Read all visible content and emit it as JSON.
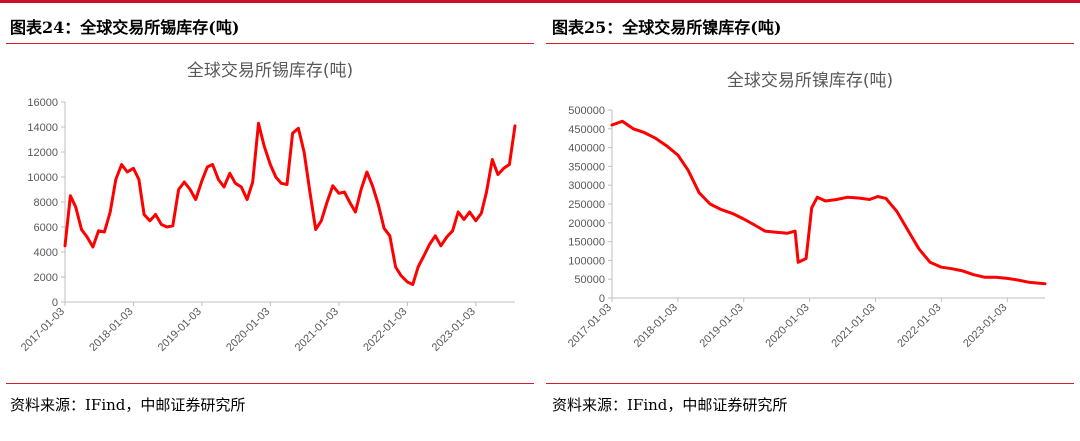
{
  "colors": {
    "accent": "#c8102e",
    "series": "#ff0000"
  },
  "left": {
    "figure_title": "图表24：全球交易所锡库存(吨)",
    "source": "资料来源：IFind，中邮证券研究所"
  },
  "right": {
    "figure_title": "图表25：全球交易所镍库存(吨)",
    "source": "资料来源：IFind，中邮证券研究所"
  },
  "chart_data": [
    {
      "type": "line",
      "title": "全球交易所锡库存(吨)",
      "xlabel": "",
      "ylabel": "",
      "ylim": [
        0,
        16000
      ],
      "yticks": [
        0,
        2000,
        4000,
        6000,
        8000,
        10000,
        12000,
        14000,
        16000
      ],
      "xticks": [
        "2017-01-03",
        "2018-01-03",
        "2019-01-03",
        "2020-01-03",
        "2021-01-03",
        "2022-01-03",
        "2023-01-03"
      ],
      "xlim": [
        "2017-01-03",
        "2023-07-31"
      ],
      "grid": false,
      "series": [
        {
          "name": "",
          "points": [
            [
              "2017-01-03",
              4500
            ],
            [
              "2017-02-01",
              8500
            ],
            [
              "2017-03-01",
              7600
            ],
            [
              "2017-04-01",
              5800
            ],
            [
              "2017-05-01",
              5200
            ],
            [
              "2017-06-01",
              4400
            ],
            [
              "2017-07-01",
              5700
            ],
            [
              "2017-08-01",
              5600
            ],
            [
              "2017-09-01",
              7200
            ],
            [
              "2017-10-01",
              9800
            ],
            [
              "2017-11-01",
              11000
            ],
            [
              "2017-12-01",
              10400
            ],
            [
              "2018-01-03",
              10700
            ],
            [
              "2018-02-01",
              9800
            ],
            [
              "2018-03-01",
              7000
            ],
            [
              "2018-04-01",
              6500
            ],
            [
              "2018-05-01",
              7000
            ],
            [
              "2018-06-01",
              6200
            ],
            [
              "2018-07-01",
              6000
            ],
            [
              "2018-08-01",
              6100
            ],
            [
              "2018-09-01",
              9000
            ],
            [
              "2018-10-01",
              9600
            ],
            [
              "2018-11-01",
              9000
            ],
            [
              "2018-12-01",
              8200
            ],
            [
              "2019-01-03",
              9700
            ],
            [
              "2019-02-01",
              10800
            ],
            [
              "2019-03-01",
              11000
            ],
            [
              "2019-04-01",
              9800
            ],
            [
              "2019-05-01",
              9200
            ],
            [
              "2019-06-01",
              10300
            ],
            [
              "2019-07-01",
              9500
            ],
            [
              "2019-08-01",
              9200
            ],
            [
              "2019-09-01",
              8200
            ],
            [
              "2019-10-01",
              9600
            ],
            [
              "2019-11-01",
              14300
            ],
            [
              "2019-12-01",
              12500
            ],
            [
              "2020-01-03",
              11000
            ],
            [
              "2020-02-01",
              10000
            ],
            [
              "2020-03-01",
              9500
            ],
            [
              "2020-04-01",
              9400
            ],
            [
              "2020-05-01",
              13500
            ],
            [
              "2020-06-01",
              13900
            ],
            [
              "2020-07-01",
              12000
            ],
            [
              "2020-08-01",
              8800
            ],
            [
              "2020-09-01",
              5800
            ],
            [
              "2020-10-01",
              6500
            ],
            [
              "2020-11-01",
              8000
            ],
            [
              "2020-12-01",
              9300
            ],
            [
              "2021-01-03",
              8700
            ],
            [
              "2021-02-01",
              8800
            ],
            [
              "2021-03-01",
              8000
            ],
            [
              "2021-04-01",
              7200
            ],
            [
              "2021-05-01",
              9000
            ],
            [
              "2021-06-01",
              10400
            ],
            [
              "2021-07-01",
              9300
            ],
            [
              "2021-08-01",
              7800
            ],
            [
              "2021-09-01",
              5900
            ],
            [
              "2021-10-01",
              5300
            ],
            [
              "2021-11-01",
              2800
            ],
            [
              "2021-12-01",
              2100
            ],
            [
              "2022-01-03",
              1600
            ],
            [
              "2022-02-01",
              1400
            ],
            [
              "2022-03-01",
              2800
            ],
            [
              "2022-04-01",
              3700
            ],
            [
              "2022-05-01",
              4600
            ],
            [
              "2022-06-01",
              5300
            ],
            [
              "2022-07-01",
              4500
            ],
            [
              "2022-08-01",
              5200
            ],
            [
              "2022-09-01",
              5700
            ],
            [
              "2022-10-01",
              7200
            ],
            [
              "2022-11-01",
              6600
            ],
            [
              "2022-12-01",
              7200
            ],
            [
              "2023-01-03",
              6500
            ],
            [
              "2023-02-01",
              7100
            ],
            [
              "2023-03-01",
              8800
            ],
            [
              "2023-04-01",
              11400
            ],
            [
              "2023-05-01",
              10200
            ],
            [
              "2023-06-01",
              10700
            ],
            [
              "2023-07-01",
              11000
            ],
            [
              "2023-07-31",
              14100
            ]
          ]
        }
      ]
    },
    {
      "type": "line",
      "title": "全球交易所镍库存(吨)",
      "xlabel": "",
      "ylabel": "",
      "ylim": [
        0,
        500000
      ],
      "yticks": [
        0,
        50000,
        100000,
        150000,
        200000,
        250000,
        300000,
        350000,
        400000,
        450000,
        500000
      ],
      "xticks": [
        "2017-01-03",
        "2018-01-03",
        "2019-01-03",
        "2020-01-03",
        "2021-01-03",
        "2022-01-03",
        "2023-01-03"
      ],
      "xlim": [
        "2017-01-03",
        "2023-07-31"
      ],
      "grid": false,
      "series": [
        {
          "name": "",
          "points": [
            [
              "2017-01-03",
              460000
            ],
            [
              "2017-03-01",
              470000
            ],
            [
              "2017-05-01",
              450000
            ],
            [
              "2017-07-01",
              440000
            ],
            [
              "2017-09-01",
              425000
            ],
            [
              "2017-11-01",
              405000
            ],
            [
              "2018-01-03",
              380000
            ],
            [
              "2018-03-01",
              340000
            ],
            [
              "2018-05-01",
              280000
            ],
            [
              "2018-07-01",
              250000
            ],
            [
              "2018-09-01",
              235000
            ],
            [
              "2018-11-01",
              225000
            ],
            [
              "2019-01-03",
              210000
            ],
            [
              "2019-03-01",
              195000
            ],
            [
              "2019-05-01",
              178000
            ],
            [
              "2019-07-01",
              175000
            ],
            [
              "2019-09-01",
              172000
            ],
            [
              "2019-10-15",
              178000
            ],
            [
              "2019-11-01",
              95000
            ],
            [
              "2019-12-15",
              105000
            ],
            [
              "2020-01-15",
              240000
            ],
            [
              "2020-02-15",
              268000
            ],
            [
              "2020-04-01",
              258000
            ],
            [
              "2020-06-01",
              262000
            ],
            [
              "2020-08-01",
              268000
            ],
            [
              "2020-10-01",
              266000
            ],
            [
              "2020-12-01",
              262000
            ],
            [
              "2021-01-15",
              270000
            ],
            [
              "2021-03-01",
              265000
            ],
            [
              "2021-05-01",
              230000
            ],
            [
              "2021-07-01",
              180000
            ],
            [
              "2021-09-01",
              130000
            ],
            [
              "2021-11-01",
              95000
            ],
            [
              "2022-01-03",
              82000
            ],
            [
              "2022-03-01",
              78000
            ],
            [
              "2022-05-01",
              72000
            ],
            [
              "2022-07-01",
              62000
            ],
            [
              "2022-09-01",
              55000
            ],
            [
              "2022-11-01",
              55000
            ],
            [
              "2023-01-03",
              52000
            ],
            [
              "2023-03-01",
              48000
            ],
            [
              "2023-05-01",
              42000
            ],
            [
              "2023-07-31",
              38000
            ]
          ]
        }
      ]
    }
  ]
}
